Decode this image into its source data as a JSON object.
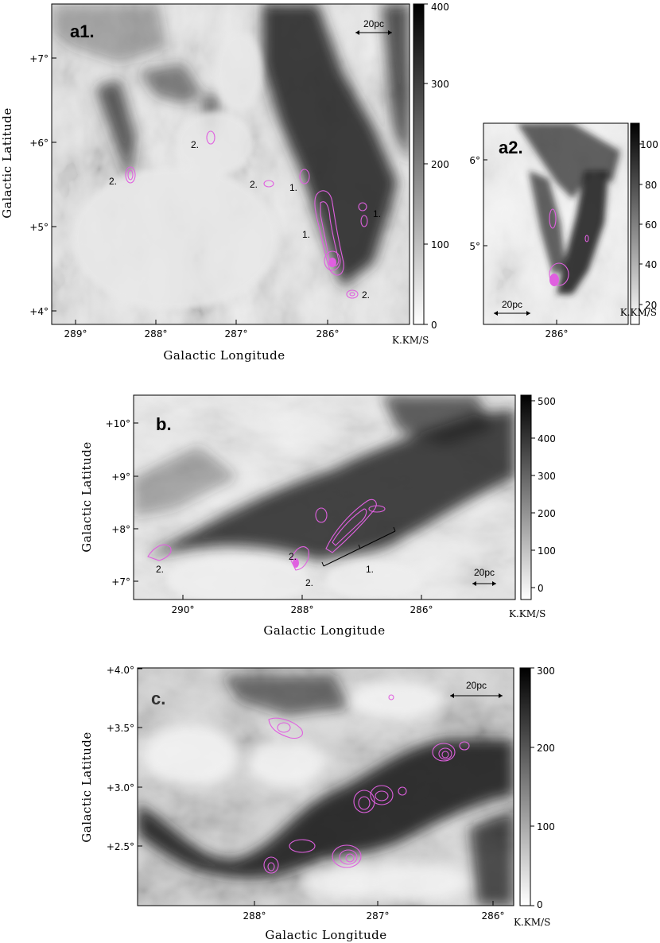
{
  "colors": {
    "contour": "#e060e0",
    "map_dark": "#1a1a1a",
    "map_light": "#f2f2f2"
  },
  "chart_data": [
    {
      "type": "heatmap",
      "panel_label": "a1.",
      "xlabel": "Galactic Longitude",
      "ylabel": "Galactic Latitude",
      "x_ticks": [
        "289°",
        "288°",
        "287°",
        "286°"
      ],
      "y_ticks": [
        "+4°",
        "+5°",
        "+6°",
        "+7°"
      ],
      "xlim": [
        289.25,
        285.1
      ],
      "ylim": [
        3.9,
        7.55
      ],
      "colorbar": {
        "ticks": [
          "0",
          "100",
          "200",
          "300",
          "400"
        ],
        "range": [
          0,
          400
        ],
        "unit": "K.KM/S"
      },
      "scale_bar": "20pc",
      "contour_labels": [
        "2.",
        "2.",
        "2.",
        "1.",
        "1.",
        "1.",
        "2."
      ],
      "contours": [
        {
          "l": 288.3,
          "b": 5.6
        },
        {
          "l": 287.4,
          "b": 6.05
        },
        {
          "l": 286.65,
          "b": 5.52
        },
        {
          "l": 286.22,
          "b": 5.6
        },
        {
          "l": 286.05,
          "b": 5.1
        },
        {
          "l": 285.98,
          "b": 4.65
        },
        {
          "l": 285.6,
          "b": 5.2
        },
        {
          "l": 285.72,
          "b": 4.18
        }
      ]
    },
    {
      "type": "heatmap",
      "panel_label": "a2.",
      "x_ticks": [
        "286°"
      ],
      "y_ticks": [
        "5°",
        "6°"
      ],
      "xlim": [
        287.0,
        285.2
      ],
      "ylim": [
        4.2,
        6.5
      ],
      "colorbar": {
        "ticks": [
          "20",
          "40",
          "60",
          "80",
          "100"
        ],
        "range": [
          10,
          110
        ],
        "unit": "K.KM/S"
      },
      "scale_bar": "20pc"
    },
    {
      "type": "heatmap",
      "panel_label": "b.",
      "xlabel": "Galactic Longitude",
      "ylabel": "Galactic Latitude",
      "x_ticks": [
        "290°",
        "288°",
        "286°"
      ],
      "y_ticks": [
        "+7°",
        "+8°",
        "+9°",
        "+10°"
      ],
      "xlim": [
        291.3,
        283.9
      ],
      "ylim": [
        6.6,
        10.5
      ],
      "colorbar": {
        "ticks": [
          "0",
          "100",
          "200",
          "300",
          "400",
          "500"
        ],
        "range": [
          -40,
          510
        ],
        "unit": "K.KM/S"
      },
      "scale_bar": "20pc",
      "contour_labels": [
        "2.",
        "2.",
        "2.",
        "1."
      ]
    },
    {
      "type": "heatmap",
      "panel_label": "c.",
      "xlabel": "Galactic Longitude",
      "ylabel": "Galactic Latitude",
      "x_ticks": [
        "288°",
        "287°",
        "286°"
      ],
      "y_ticks": [
        "+2.5°",
        "+3.0°",
        "+3.5°",
        "+4.0°"
      ],
      "xlim": [
        288.9,
        285.8
      ],
      "ylim": [
        2.0,
        4.0
      ],
      "colorbar": {
        "ticks": [
          "0",
          "100",
          "200",
          "300"
        ],
        "range": [
          0,
          300
        ],
        "unit": "K.KM/S"
      },
      "scale_bar": "20pc"
    }
  ]
}
